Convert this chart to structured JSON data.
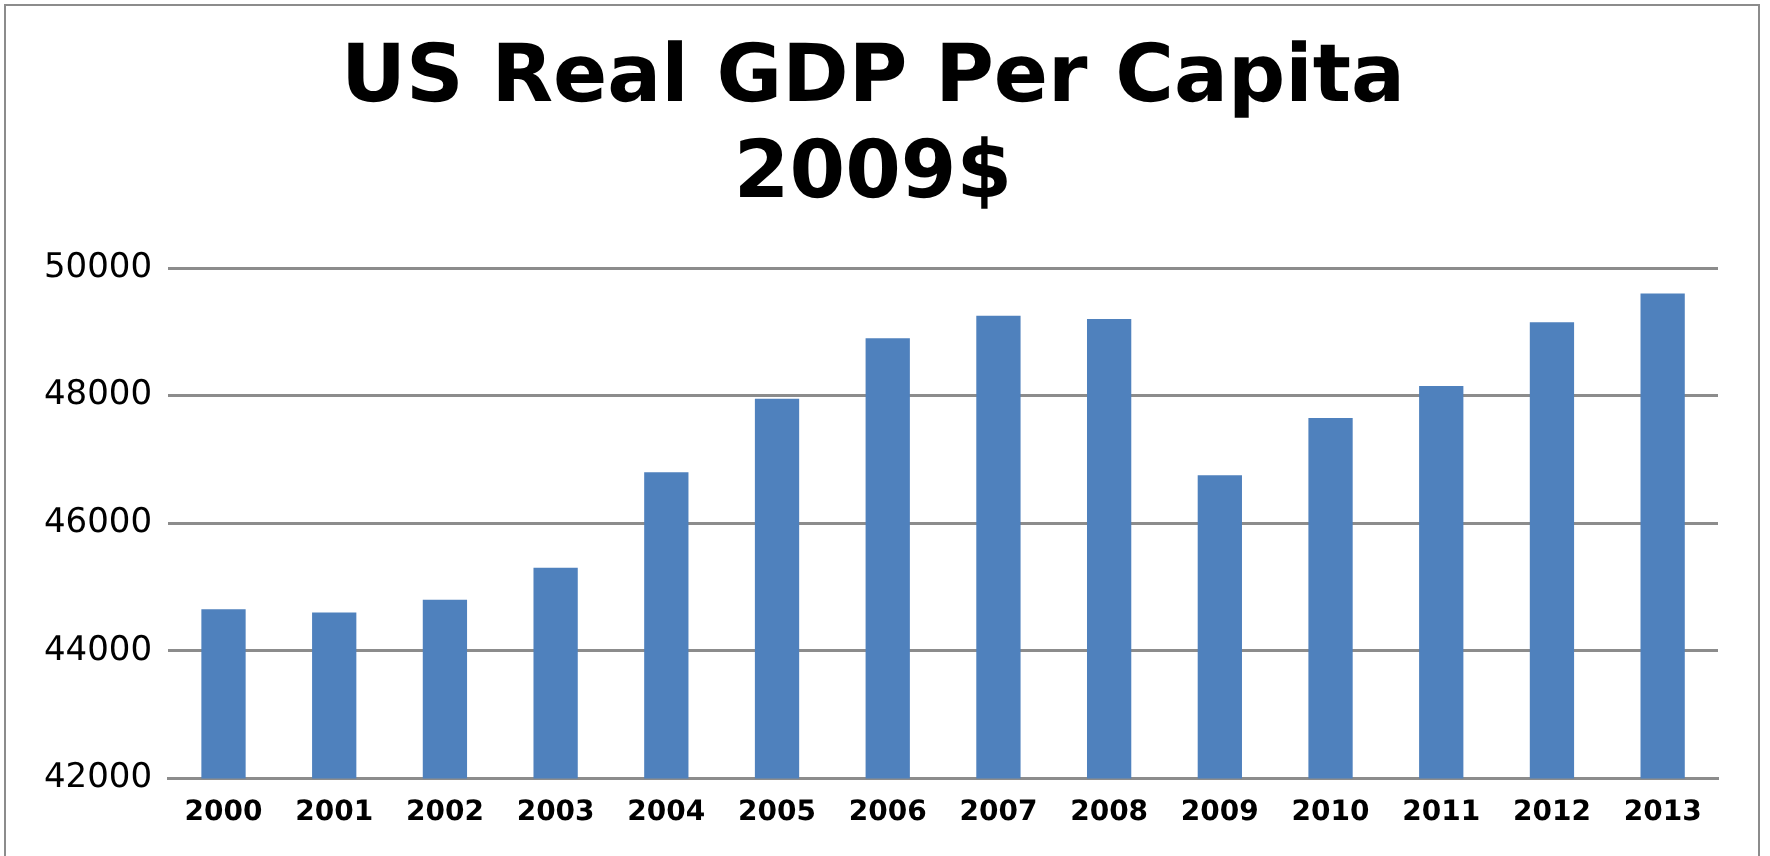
{
  "chart_data": {
    "type": "bar",
    "title": "US Real GDP Per Capita",
    "subtitle": "2009$",
    "categories": [
      "2000",
      "2001",
      "2002",
      "2003",
      "2004",
      "2005",
      "2006",
      "2007",
      "2008",
      "2009",
      "2010",
      "2011",
      "2012",
      "2013"
    ],
    "values": [
      44650,
      44600,
      44800,
      45300,
      46800,
      47950,
      48900,
      49250,
      49200,
      46750,
      47650,
      48150,
      49150,
      49600
    ],
    "color": "#4f81bd",
    "ylim": [
      42000,
      50000
    ],
    "yticks": [
      42000,
      44000,
      46000,
      48000,
      50000
    ],
    "grid": "y",
    "legend": false
  }
}
